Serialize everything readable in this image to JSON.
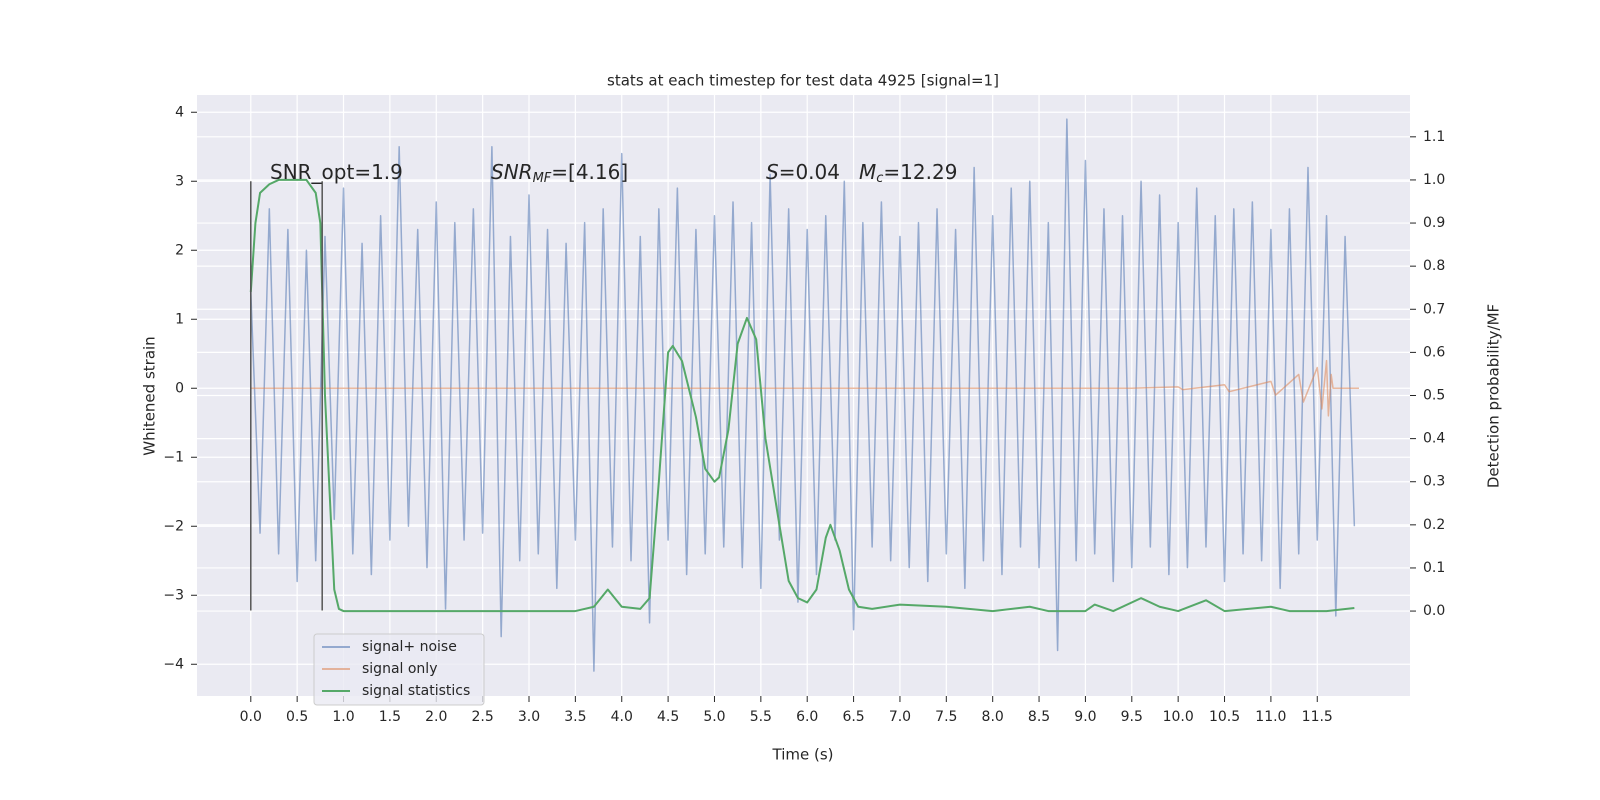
{
  "chart_data": {
    "type": "line",
    "title": "stats at each timestep for test data 4925 [signal=1]",
    "xlabel": "Time (s)",
    "ylabel": "Whitened strain",
    "y2label": "Detection probability/MF",
    "xlim": [
      -0.58,
      12.5
    ],
    "ylim": [
      -4.46,
      4.25
    ],
    "y2lim": [
      -0.197,
      1.197
    ],
    "xticks": [
      {
        "value": 0,
        "label": "0.0"
      },
      0.5,
      {
        "value": 1,
        "label": "1.0"
      },
      1.5,
      {
        "value": 2,
        "label": "2.0"
      },
      2.5,
      {
        "value": 3,
        "label": "3.0"
      },
      3.5,
      {
        "value": 4,
        "label": "4.0"
      },
      4.5,
      {
        "value": 5,
        "label": "5.0"
      },
      5.5,
      {
        "value": 6,
        "label": "6.0"
      },
      6.5,
      {
        "value": 7,
        "label": "7.0"
      },
      7.5,
      {
        "value": 8,
        "label": "8.0"
      },
      8.5,
      {
        "value": 9,
        "label": "9.0"
      },
      9.5,
      {
        "value": 10,
        "label": "10.0"
      },
      10.5,
      {
        "value": 11,
        "label": "11.0"
      },
      11.5
    ],
    "yticks": [
      {
        "value": -4,
        "label": "−4"
      },
      {
        "value": -3,
        "label": "−3"
      },
      {
        "value": -2,
        "label": "−2"
      },
      {
        "value": -1,
        "label": "−1"
      },
      0,
      1,
      2,
      3,
      4
    ],
    "y2ticks": [
      {
        "value": 0,
        "label": "0.0"
      },
      0.1,
      0.2,
      0.3,
      0.4,
      0.5,
      0.6,
      0.7,
      0.8,
      0.9,
      {
        "value": 1,
        "label": "1.0"
      },
      1.1
    ],
    "grid": true,
    "legend_loc": "lower left",
    "series": [
      {
        "name": "signal+ noise",
        "color": "#4c72b0",
        "axis": "y",
        "x": [
          0,
          0.1,
          0.2,
          0.3,
          0.4,
          0.5,
          0.6,
          0.7,
          0.8,
          0.9,
          1,
          1.1,
          1.2,
          1.3,
          1.4,
          1.5,
          1.6,
          1.7,
          1.8,
          1.9,
          2,
          2.1,
          2.2,
          2.3,
          2.4,
          2.5,
          2.6,
          2.7,
          2.8,
          2.9,
          3,
          3.1,
          3.2,
          3.3,
          3.4,
          3.5,
          3.6,
          3.7,
          3.8,
          3.9,
          4,
          4.1,
          4.2,
          4.3,
          4.4,
          4.5,
          4.6,
          4.7,
          4.8,
          4.9,
          5,
          5.1,
          5.2,
          5.3,
          5.4,
          5.5,
          5.6,
          5.7,
          5.8,
          5.9,
          6,
          6.1,
          6.2,
          6.3,
          6.4,
          6.5,
          6.6,
          6.7,
          6.8,
          6.9,
          7,
          7.1,
          7.2,
          7.3,
          7.4,
          7.5,
          7.6,
          7.7,
          7.8,
          7.9,
          8,
          8.1,
          8.2,
          8.3,
          8.4,
          8.5,
          8.6,
          8.7,
          8.8,
          8.9,
          9,
          9.1,
          9.2,
          9.3,
          9.4,
          9.5,
          9.6,
          9.7,
          9.8,
          9.9,
          10,
          10.1,
          10.2,
          10.3,
          10.4,
          10.5,
          10.6,
          10.7,
          10.8,
          10.9,
          11,
          11.1,
          11.2,
          11.3,
          11.4,
          11.5,
          11.6,
          11.7,
          11.8,
          11.9
        ],
        "values": [
          1.4,
          -2.1,
          2.6,
          -2.4,
          2.3,
          -2.8,
          2.0,
          -2.5,
          2.2,
          -1.9,
          2.9,
          -2.4,
          2.1,
          -2.7,
          2.5,
          -2.2,
          3.5,
          -2.0,
          2.3,
          -2.6,
          2.7,
          -3.2,
          2.4,
          -2.2,
          2.6,
          -2.1,
          3.5,
          -3.6,
          2.2,
          -2.5,
          2.8,
          -2.4,
          2.3,
          -2.9,
          2.1,
          -2.2,
          2.4,
          -4.1,
          2.6,
          -2.3,
          3.4,
          -2.5,
          2.2,
          -3.4,
          2.6,
          -2.2,
          2.9,
          -2.7,
          2.3,
          -2.4,
          2.5,
          -2.3,
          2.7,
          -2.6,
          2.4,
          -2.9,
          3.1,
          -2.2,
          2.6,
          -3.1,
          2.3,
          -2.7,
          2.5,
          -2.2,
          3.0,
          -3.5,
          2.4,
          -2.3,
          2.7,
          -2.5,
          2.2,
          -2.6,
          2.4,
          -2.8,
          2.6,
          -2.4,
          2.3,
          -2.9,
          3.2,
          -2.5,
          2.5,
          -2.7,
          2.9,
          -2.3,
          3.0,
          -2.6,
          2.4,
          -3.8,
          3.9,
          -2.5,
          3.3,
          -2.4,
          2.6,
          -2.8,
          2.5,
          -2.6,
          3.0,
          -2.3,
          2.8,
          -2.7,
          2.4,
          -2.6,
          2.9,
          -2.3,
          2.5,
          -2.8,
          2.6,
          -2.4,
          2.7,
          -2.5,
          2.3,
          -2.9,
          2.6,
          -2.4,
          3.2,
          -2.2,
          2.5,
          -3.3,
          2.2,
          -2.0
        ]
      },
      {
        "name": "signal only",
        "color": "#dd8452",
        "axis": "y",
        "x": [
          0,
          9.5,
          10,
          10.05,
          10.5,
          10.55,
          11,
          11.05,
          11.3,
          11.35,
          11.5,
          11.55,
          11.6,
          11.62,
          11.65,
          11.67,
          11.95
        ],
        "values": [
          0,
          0,
          0.02,
          -0.02,
          0.05,
          -0.05,
          0.1,
          -0.1,
          0.2,
          -0.2,
          0.3,
          -0.3,
          0.4,
          -0.4,
          0.2,
          0,
          0
        ]
      },
      {
        "name": "signal statistics",
        "color": "#55a868",
        "axis": "y2",
        "x": [
          0,
          0.05,
          0.1,
          0.2,
          0.3,
          0.5,
          0.6,
          0.7,
          0.75,
          0.8,
          0.9,
          0.95,
          1,
          2,
          3,
          3.5,
          3.7,
          3.85,
          4,
          4.2,
          4.3,
          4.4,
          4.5,
          4.55,
          4.65,
          4.8,
          4.9,
          5,
          5.05,
          5.15,
          5.25,
          5.35,
          5.45,
          5.55,
          5.7,
          5.8,
          5.9,
          6,
          6.1,
          6.2,
          6.25,
          6.35,
          6.45,
          6.55,
          6.7,
          7,
          7.5,
          8,
          8.4,
          8.6,
          9,
          9.1,
          9.3,
          9.6,
          9.8,
          10,
          10.3,
          10.5,
          11,
          11.2,
          11.6,
          11.9
        ],
        "values": [
          0.74,
          0.9,
          0.97,
          0.99,
          1.0,
          1.0,
          1.0,
          0.97,
          0.9,
          0.5,
          0.05,
          0.005,
          0,
          0,
          0,
          0,
          0.01,
          0.05,
          0.01,
          0.005,
          0.03,
          0.3,
          0.6,
          0.615,
          0.58,
          0.45,
          0.33,
          0.3,
          0.31,
          0.42,
          0.62,
          0.68,
          0.63,
          0.4,
          0.2,
          0.07,
          0.03,
          0.02,
          0.05,
          0.17,
          0.2,
          0.14,
          0.05,
          0.01,
          0.005,
          0.015,
          0.01,
          0,
          0.01,
          0,
          0,
          0.015,
          0,
          0.03,
          0.01,
          0,
          0.025,
          0,
          0.01,
          0,
          0,
          0.007
        ]
      }
    ],
    "vlines": [
      0,
      0.77
    ],
    "vline_range": [
      -3.22,
      3.0
    ],
    "annotations": [
      [
        "SNR_opt=1.9"
      ],
      [
        "SNR",
        "MF",
        "=[4.16]"
      ],
      [
        "S",
        "=0.04"
      ],
      [
        "M",
        "c",
        "=12.29"
      ]
    ]
  }
}
